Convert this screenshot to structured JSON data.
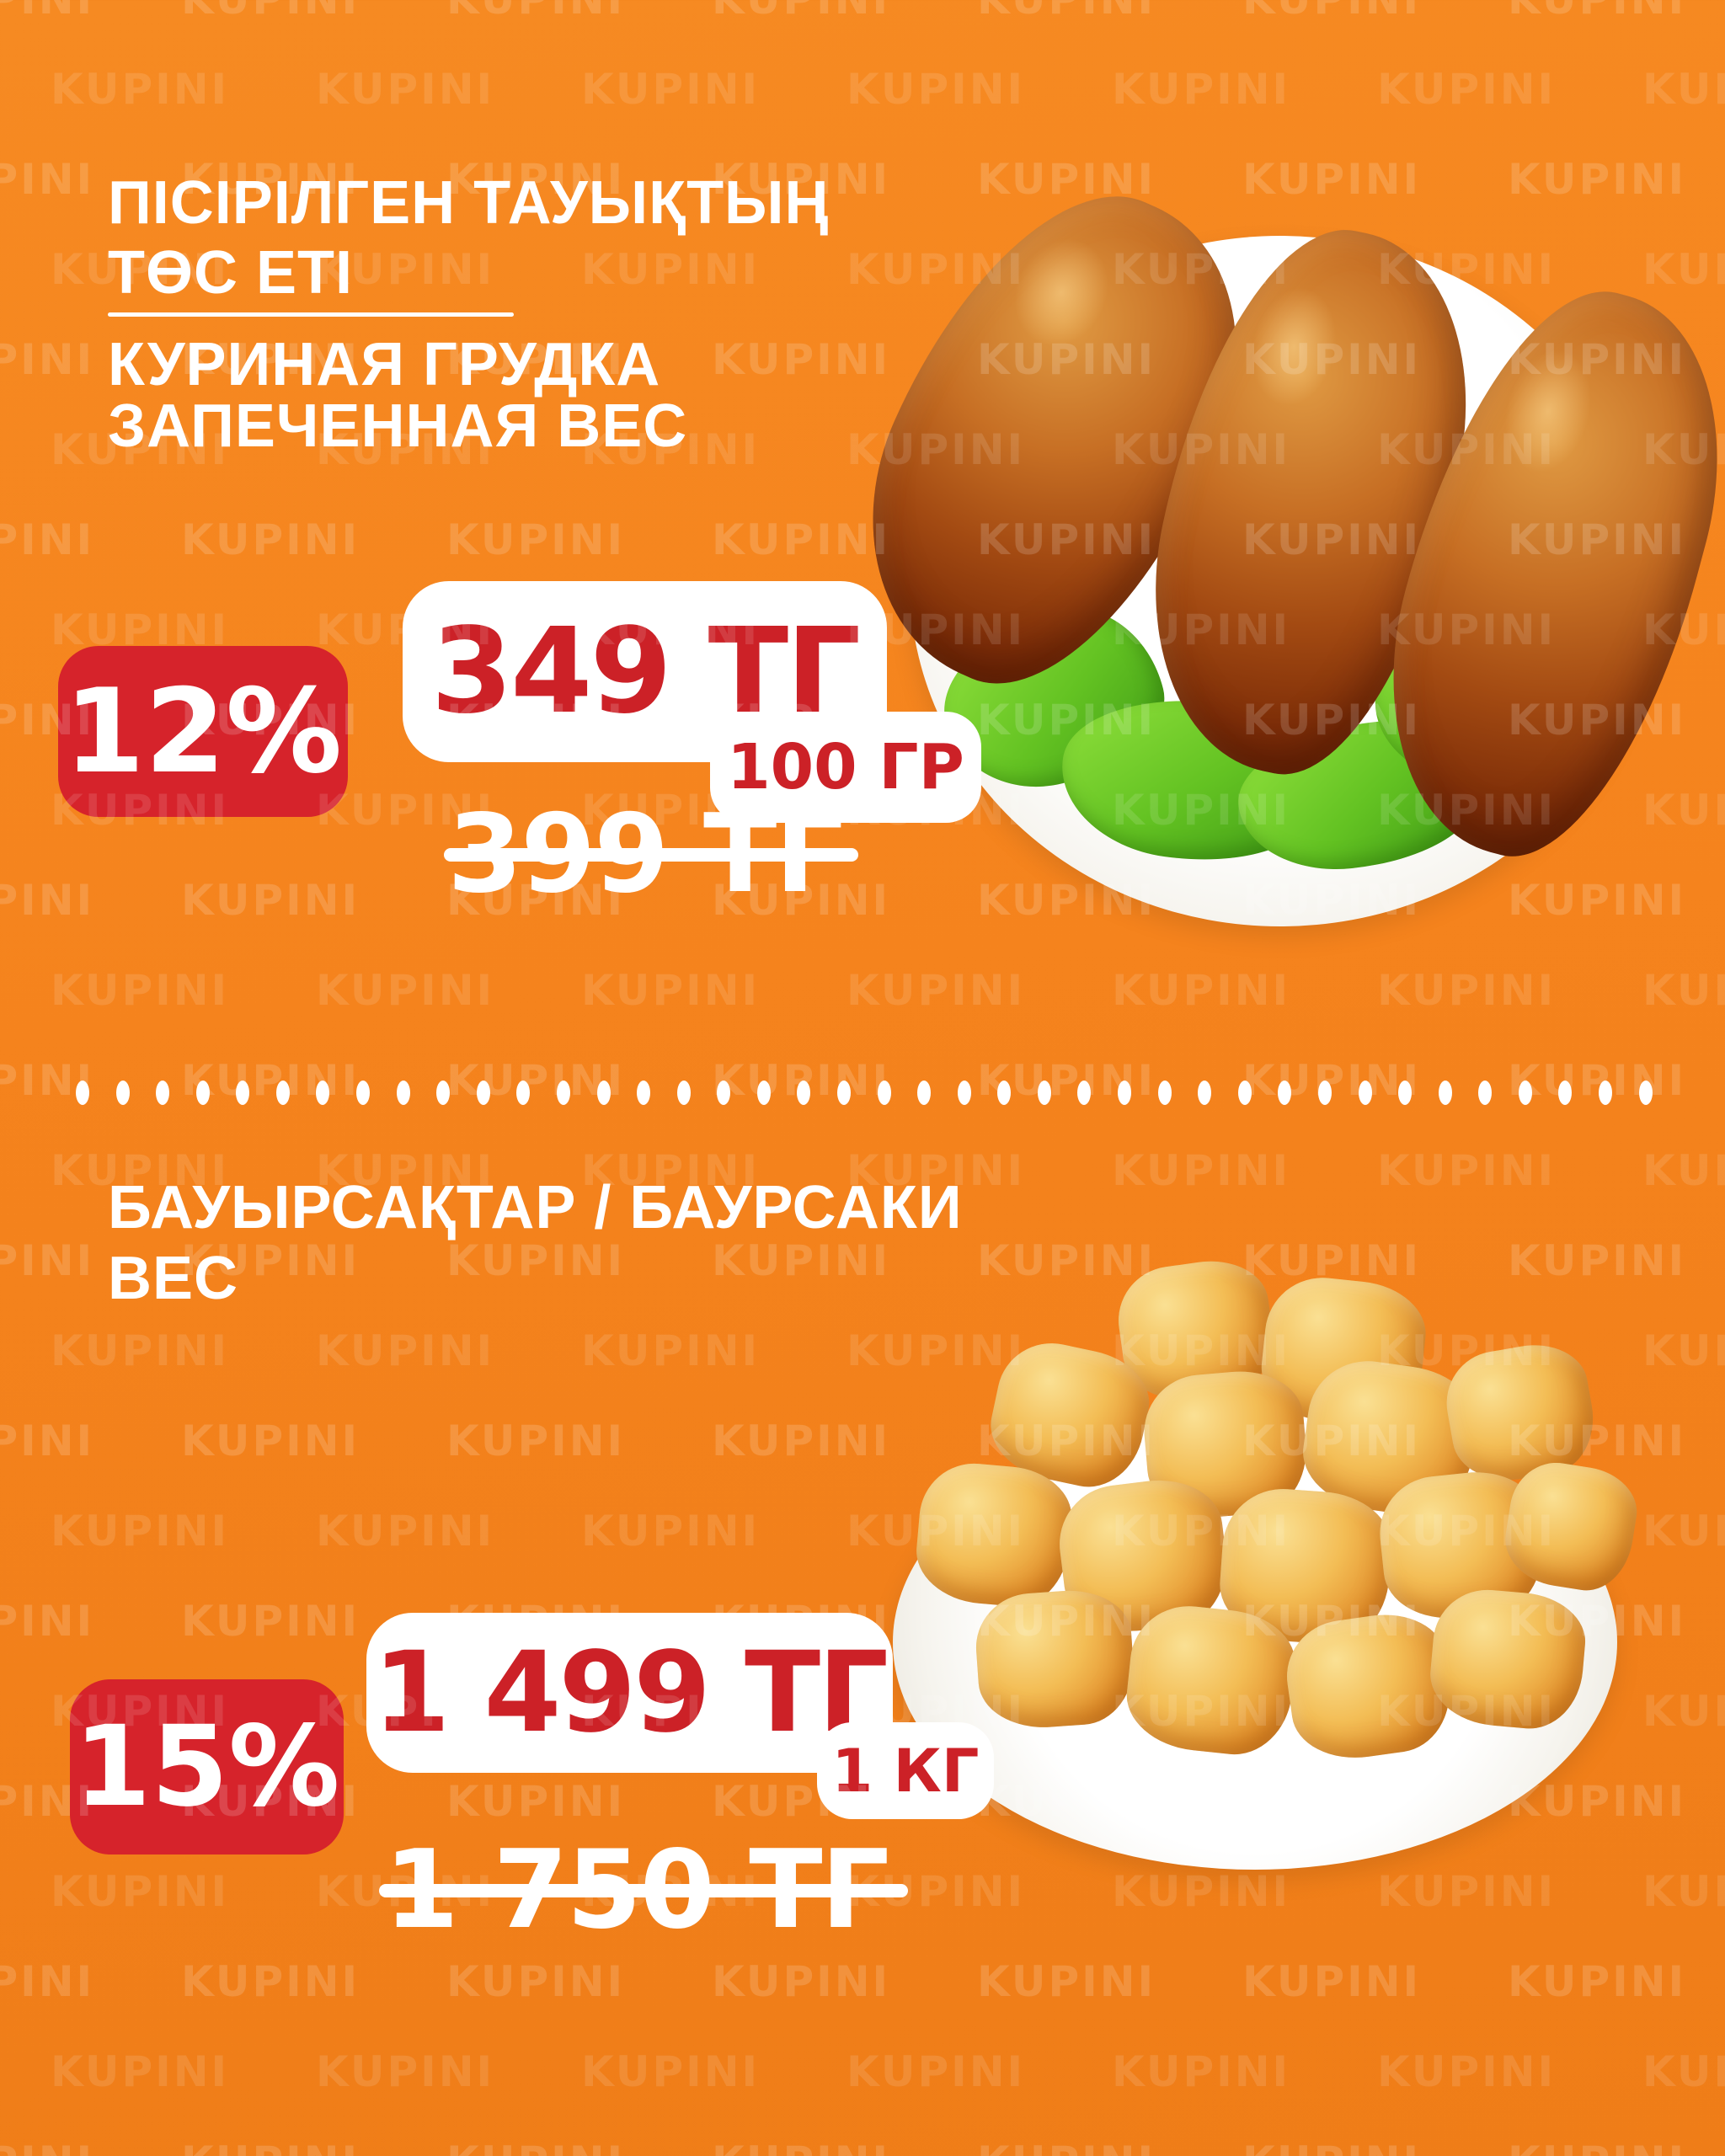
{
  "watermark": {
    "text": "KUPINI"
  },
  "colors": {
    "background": "#F5831D",
    "badge_red": "#D6232B",
    "price_red": "#CC2127",
    "text_white": "#FFFFFF"
  },
  "divider_dots": 40,
  "products": [
    {
      "title_lines_kk": [
        "ПІСІРІЛГЕН ТАУЫҚТЫҢ",
        "ТӨС ЕТІ"
      ],
      "title_lines_ru": [
        "КУРИНАЯ ГРУДКА",
        "ЗАПЕЧЕННАЯ ВЕС"
      ],
      "discount_badge": "12%",
      "price": "349 ТГ",
      "unit": "100 ГР",
      "old_price": "399 ТГ"
    },
    {
      "title_lines_kk": [
        "БАУЫРСАҚТАР / БАУРСАКИ",
        "ВЕС"
      ],
      "title_lines_ru": [],
      "discount_badge": "15%",
      "price": "1 499 ТГ",
      "unit": "1 КГ",
      "old_price": "1 750 ТГ"
    }
  ]
}
